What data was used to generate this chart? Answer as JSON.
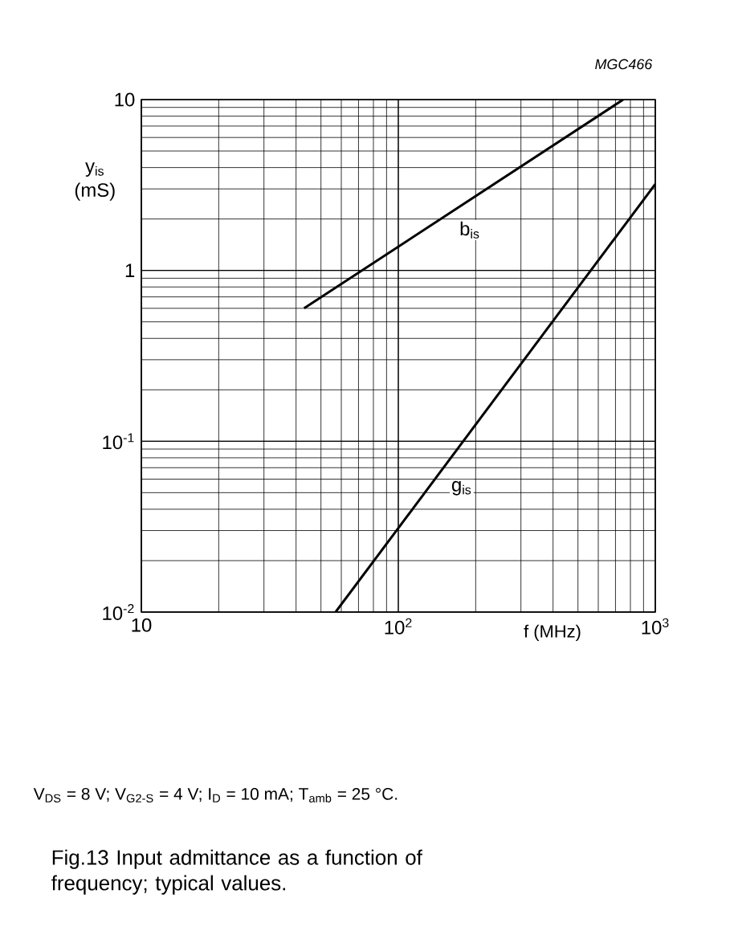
{
  "chart_data": {
    "type": "line",
    "title": "Fig.13  Input admittance as a function of frequency; typical values.",
    "xlabel": "f  (MHz)",
    "ylabel": "y$_{is}$ (mS)",
    "log": "xy",
    "grid": true,
    "legend": false,
    "line_style": "solid",
    "marker": "none",
    "xlim": [
      10,
      1000
    ],
    "ylim": [
      0.01,
      10
    ],
    "xticks": [
      10,
      {
        "value": 100,
        "label": "10$^{2}$"
      },
      {
        "value": 1000,
        "label": "10$^{3}$"
      }
    ],
    "yticks": [
      {
        "value": 0.01,
        "label": "10$^{-2}$"
      },
      {
        "value": 0.1,
        "label": "10$^{-1}$"
      },
      1,
      10
    ],
    "series": [
      {
        "name": "b$_{is}$",
        "color": "#000000",
        "x": [
          43,
          750
        ],
        "values": [
          0.6,
          10
        ]
      },
      {
        "name": "g$_{is}$",
        "color": "#000000",
        "x": [
          57,
          1000
        ],
        "values": [
          0.01,
          3.2
        ]
      }
    ],
    "annotations": [
      "MGC466",
      "V$_{DS}$ = 8 V; V$_{G2-S}$ = 4 V; I$_{D}$ = 10 mA; T$_{amb}$ = 25 °C."
    ]
  }
}
